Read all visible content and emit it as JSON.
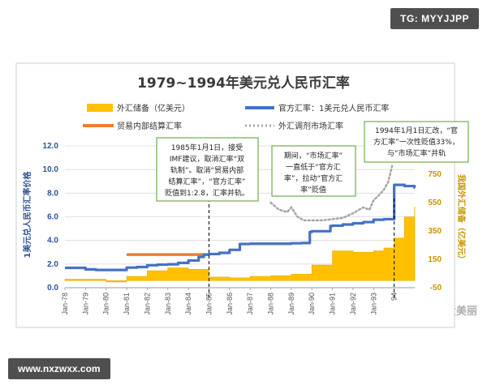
{
  "watermarks": {
    "top": "TG: MYYJJPP",
    "bottom": "www.nxzwxx.com",
    "corner": "格大美丽"
  },
  "chart_data": {
    "type": "line",
    "title": "1979~1994年美元兑人民币汇率",
    "legend": [
      "外汇储备（亿美元）",
      "官方汇率：1美元兑人民币汇率",
      "贸易内部结算汇率",
      "外汇调剂市场汇率"
    ],
    "ylabel_left": "1美元兑人民币汇率价格",
    "ylabel_right": "我国外汇储备（亿美元）",
    "ylim_left": [
      0,
      12
    ],
    "yticks_left": [
      "0.0",
      "2.0",
      "4.0",
      "6.0",
      "8.0",
      "10.0",
      "12.0"
    ],
    "ylim_right": [
      -50,
      950
    ],
    "yticks_right": [
      "-50",
      "150",
      "350",
      "550",
      "750"
    ],
    "x_ticks": [
      "Jan-78",
      "Jan-79",
      "Jan-80",
      "Jan-81",
      "Jan-82",
      "Jan-83",
      "Jan-84",
      "Jan-85",
      "Jan-86",
      "Jan-87",
      "Jan-88",
      "Jan-89",
      "Jan-90",
      "Jan-91",
      "Jan-92",
      "Jan-93",
      "94"
    ],
    "series": [
      {
        "name": "官方汇率：1美元兑人民币汇率",
        "color": "#4472c4",
        "x": [
          1978.0,
          1979.0,
          1979.5,
          1980.0,
          1980.5,
          1981.0,
          1981.5,
          1982.0,
          1982.5,
          1983.0,
          1983.5,
          1984.0,
          1984.5,
          1984.75,
          1985.0,
          1985.5,
          1986.0,
          1986.5,
          1987.0,
          1987.5,
          1988.0,
          1988.5,
          1989.0,
          1989.5,
          1989.9,
          1990.0,
          1990.5,
          1990.9,
          1991.0,
          1991.5,
          1992.0,
          1992.5,
          1993.0,
          1993.5,
          1993.99,
          1994.0,
          1994.5,
          1994.99
        ],
        "values": [
          1.68,
          1.55,
          1.5,
          1.5,
          1.5,
          1.7,
          1.75,
          1.9,
          1.95,
          1.98,
          2.1,
          2.3,
          2.6,
          2.8,
          2.85,
          2.95,
          3.2,
          3.7,
          3.72,
          3.72,
          3.72,
          3.72,
          3.76,
          3.78,
          4.72,
          4.78,
          4.78,
          5.22,
          5.25,
          5.35,
          5.45,
          5.55,
          5.75,
          5.8,
          5.8,
          8.7,
          8.6,
          8.45
        ]
      },
      {
        "name": "外汇储备（亿美元）",
        "color": "#ffc000",
        "x": [
          1978.0,
          1979.0,
          1980.0,
          1981.0,
          1982.0,
          1983.0,
          1984.0,
          1985.0,
          1986.0,
          1987.0,
          1988.0,
          1989.0,
          1990.0,
          1991.0,
          1992.0,
          1993.0,
          1993.5,
          1994.0,
          1994.5,
          1994.99
        ],
        "values": [
          10,
          10,
          -10,
          30,
          70,
          90,
          80,
          25,
          20,
          30,
          35,
          45,
          110,
          210,
          200,
          210,
          230,
          300,
          450,
          520
        ]
      },
      {
        "name": "贸易内部结算汇率",
        "color": "#ed7d31",
        "x": [
          1981.0,
          1984.99
        ],
        "values": [
          2.8,
          2.8
        ]
      },
      {
        "name": "外汇调剂市场汇率",
        "color": "#a6a6a6",
        "x": [
          1988.0,
          1988.4,
          1988.8,
          1989.0,
          1989.3,
          1989.6,
          1990.0,
          1990.5,
          1991.0,
          1991.5,
          1992.0,
          1992.5,
          1992.8,
          1993.0,
          1993.3,
          1993.5,
          1993.7,
          1993.9
        ],
        "values": [
          7.2,
          6.6,
          6.4,
          6.8,
          6.0,
          5.7,
          5.7,
          5.7,
          5.8,
          5.9,
          6.3,
          6.8,
          6.6,
          7.4,
          7.9,
          8.3,
          8.9,
          10.3
        ]
      }
    ],
    "annotations": [
      {
        "lines": [
          "1985年1月1日，接受",
          "IMF建议，取消汇率“双",
          "轨制”。取消“贸易内部",
          "结算汇率”，“官方汇率”",
          "贬值到1:2.8，汇率并轨。"
        ],
        "at_x": 1985.0
      },
      {
        "lines": [
          "期间，“市场汇率”",
          "一直低于“官方汇",
          "率”，拉动“官方汇",
          "率”贬值"
        ]
      },
      {
        "lines": [
          "1994年1月1日汇改，“官",
          "方汇率”一次性贬值33%，",
          "与“市场汇率”并轨"
        ],
        "at_x": 1994.0
      }
    ],
    "colors": {
      "official": "#4472c4",
      "reserves": "#ffc000",
      "trade": "#ed7d31",
      "market": "#a6a6a6",
      "box_border": "#70ad47",
      "grid": "#d9d9d9"
    }
  }
}
